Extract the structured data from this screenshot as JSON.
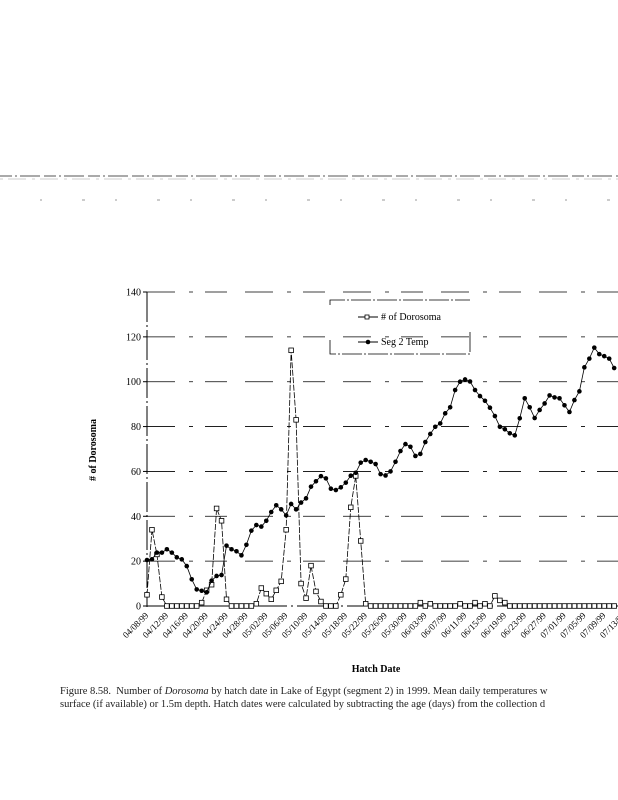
{
  "chart_data": {
    "type": "line",
    "xlabel": "Hatch Date",
    "ylabel": "# of Dorosoma",
    "ylim": [
      0,
      140
    ],
    "yticks": [
      0,
      20,
      40,
      60,
      80,
      100,
      120,
      140
    ],
    "xtick_labels": [
      "04/08/99",
      "04/12/99",
      "04/16/99",
      "04/20/99",
      "04/24/99",
      "04/28/99",
      "05/02/99",
      "05/06/99",
      "05/10/99",
      "05/14/99",
      "05/18/99",
      "05/22/99",
      "05/26/99",
      "05/30/99",
      "06/03/99",
      "06/07/99",
      "06/11/99",
      "06/15/99",
      "06/19/99",
      "06/23/99",
      "06/27/99",
      "07/01/99",
      "07/05/99",
      "07/09/99",
      "07/13/99"
    ],
    "grid": true,
    "legend_position": "top-center",
    "x": [
      "04/08/99",
      "04/09/99",
      "04/10/99",
      "04/11/99",
      "04/12/99",
      "04/13/99",
      "04/14/99",
      "04/15/99",
      "04/16/99",
      "04/17/99",
      "04/18/99",
      "04/19/99",
      "04/20/99",
      "04/21/99",
      "04/22/99",
      "04/23/99",
      "04/24/99",
      "04/25/99",
      "04/26/99",
      "04/27/99",
      "04/28/99",
      "04/29/99",
      "04/30/99",
      "05/01/99",
      "05/02/99",
      "05/03/99",
      "05/04/99",
      "05/05/99",
      "05/06/99",
      "05/07/99",
      "05/08/99",
      "05/09/99",
      "05/10/99",
      "05/11/99",
      "05/12/99",
      "05/13/99",
      "05/14/99",
      "05/15/99",
      "05/16/99",
      "05/17/99",
      "05/18/99",
      "05/19/99",
      "05/20/99",
      "05/21/99",
      "05/22/99",
      "05/23/99",
      "05/24/99",
      "05/25/99",
      "05/26/99",
      "05/27/99",
      "05/28/99",
      "05/29/99",
      "05/30/99",
      "05/31/99",
      "06/01/99",
      "06/02/99",
      "06/03/99",
      "06/04/99",
      "06/05/99",
      "06/06/99",
      "06/07/99",
      "06/08/99",
      "06/09/99",
      "06/10/99",
      "06/11/99",
      "06/12/99",
      "06/13/99",
      "06/14/99",
      "06/15/99",
      "06/16/99",
      "06/17/99",
      "06/18/99",
      "06/19/99",
      "06/20/99",
      "06/21/99",
      "06/22/99",
      "06/23/99",
      "06/24/99",
      "06/25/99",
      "06/26/99",
      "06/27/99",
      "06/28/99",
      "06/29/99",
      "06/30/99",
      "07/01/99",
      "07/02/99",
      "07/03/99",
      "07/04/99",
      "07/05/99",
      "07/06/99",
      "07/07/99",
      "07/08/99",
      "07/09/99",
      "07/10/99",
      "07/11/99"
    ],
    "series": [
      {
        "name": "# of Dorosoma",
        "marker": "open-square",
        "values": [
          5,
          34,
          23,
          4,
          0,
          0,
          0,
          0,
          0,
          0,
          0,
          1.5,
          7,
          9.5,
          43.5,
          38,
          3,
          0,
          0,
          0,
          0,
          0,
          1,
          8,
          5.5,
          3,
          7,
          11,
          34,
          114,
          83,
          10,
          3.5,
          18,
          6.5,
          2,
          0,
          0,
          0,
          5,
          12,
          44,
          58,
          29,
          1,
          0,
          0,
          0,
          0,
          0,
          0,
          0,
          0,
          0,
          0,
          1.5,
          0,
          1,
          0,
          0,
          0,
          0,
          0,
          1,
          0,
          0,
          1.5,
          0,
          1,
          0,
          4.5,
          2.5,
          1.5,
          0,
          0,
          0,
          0,
          0,
          0,
          0,
          0,
          0,
          0,
          0,
          0,
          0,
          0,
          0,
          0,
          0,
          0,
          0,
          0,
          0,
          0
        ]
      },
      {
        "name": "Seg 2 Temp",
        "marker": "filled-circle",
        "values": [
          20.5,
          20.8,
          23.8,
          23.8,
          25.3,
          23.8,
          21.7,
          20.8,
          17.8,
          11.9,
          7.4,
          6.8,
          6.1,
          11.3,
          13.4,
          13.8,
          26.9,
          25.3,
          24.4,
          22.6,
          27.3,
          33.6,
          36.1,
          35.4,
          38.0,
          41.9,
          44.9,
          43.1,
          40.4,
          45.5,
          43.1,
          46.1,
          48.0,
          53.2,
          55.6,
          57.9,
          56.9,
          52.3,
          51.7,
          52.9,
          55.0,
          58.1,
          59.4,
          63.9,
          65.1,
          64.3,
          63.3,
          58.8,
          58.2,
          60.0,
          64.3,
          69.1,
          72.2,
          71.0,
          66.9,
          67.8,
          73.1,
          76.7,
          79.9,
          81.4,
          85.9,
          88.6,
          96.3,
          100.0,
          101.0,
          100.1,
          96.3,
          93.6,
          91.5,
          88.4,
          84.7,
          79.9,
          78.8,
          77.0,
          76.1,
          83.7,
          92.6,
          88.6,
          83.8,
          87.4,
          90.3,
          93.9,
          93.0,
          92.6,
          89.5,
          86.5,
          91.8,
          95.7,
          106.4,
          110.3,
          115.2,
          112.3,
          111.4,
          110.3,
          106.1
        ]
      }
    ]
  },
  "caption": {
    "label": "Figure 8.58.",
    "text_before": "Number of ",
    "genus": "Dorosoma",
    "text_after": " by hatch date in Lake of Egypt (segment 2) in 1999.  Mean daily temperatures w",
    "line2": "surface (if available) or 1.5m depth.  Hatch dates were calculated by subtracting the age (days) from the collection d"
  },
  "colors": {
    "ink": "#000000",
    "paper": "#ffffff"
  }
}
